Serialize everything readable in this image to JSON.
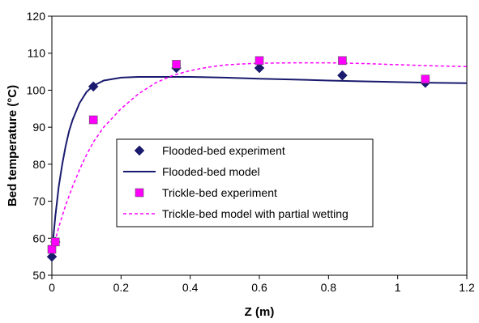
{
  "chart_data": {
    "type": "scatter",
    "xlabel": "Z (m)",
    "ylabel": "Bed temperature (°C)",
    "xlim": [
      0,
      1.2
    ],
    "ylim": [
      50,
      120
    ],
    "x_ticks": [
      0,
      0.2,
      0.4,
      0.6,
      0.8,
      1,
      1.2
    ],
    "x_tick_labels": [
      "0",
      "0.2",
      "0.4",
      "0.6",
      "0.8",
      "1",
      "1.2"
    ],
    "y_ticks": [
      50,
      60,
      70,
      80,
      90,
      100,
      110,
      120
    ],
    "y_tick_labels": [
      "50",
      "60",
      "70",
      "80",
      "90",
      "100",
      "110",
      "120"
    ],
    "grid": false,
    "legend_position": "center",
    "series": [
      {
        "name": "Flooded-bed experiment",
        "kind": "markers",
        "marker": "diamond",
        "color": "#1a1a6e",
        "points": [
          [
            0,
            55
          ],
          [
            0.01,
            59
          ],
          [
            0.12,
            101
          ],
          [
            0.36,
            106
          ],
          [
            0.6,
            106
          ],
          [
            0.84,
            104
          ],
          [
            1.08,
            102
          ]
        ]
      },
      {
        "name": "Flooded-bed model",
        "kind": "line",
        "line_style": "solid",
        "color": "#1a1a6e",
        "points": [
          [
            0,
            56
          ],
          [
            0.01,
            66
          ],
          [
            0.02,
            74
          ],
          [
            0.03,
            80
          ],
          [
            0.04,
            85
          ],
          [
            0.05,
            89
          ],
          [
            0.06,
            92
          ],
          [
            0.08,
            96.5
          ],
          [
            0.1,
            99.5
          ],
          [
            0.12,
            101.2
          ],
          [
            0.15,
            102.6
          ],
          [
            0.2,
            103.4
          ],
          [
            0.25,
            103.6
          ],
          [
            0.3,
            103.6
          ],
          [
            0.4,
            103.6
          ],
          [
            0.5,
            103.4
          ],
          [
            0.6,
            103.1
          ],
          [
            0.7,
            102.9
          ],
          [
            0.8,
            102.6
          ],
          [
            0.9,
            102.4
          ],
          [
            1.0,
            102.2
          ],
          [
            1.1,
            102.0
          ],
          [
            1.2,
            101.9
          ]
        ]
      },
      {
        "name": "Trickle-bed experiment",
        "kind": "markers",
        "marker": "square",
        "color": "#ff00ff",
        "points": [
          [
            0,
            57
          ],
          [
            0.01,
            59
          ],
          [
            0.12,
            92
          ],
          [
            0.36,
            107
          ],
          [
            0.6,
            108
          ],
          [
            0.84,
            108
          ],
          [
            1.08,
            103
          ]
        ]
      },
      {
        "name": "Trickle-bed model with partial wetting",
        "kind": "line",
        "line_style": "dashed",
        "color": "#ff00ff",
        "points": [
          [
            0,
            56
          ],
          [
            0.02,
            63
          ],
          [
            0.04,
            69
          ],
          [
            0.06,
            74
          ],
          [
            0.08,
            78.5
          ],
          [
            0.1,
            82.5
          ],
          [
            0.12,
            86
          ],
          [
            0.15,
            90
          ],
          [
            0.2,
            95
          ],
          [
            0.25,
            99
          ],
          [
            0.3,
            102
          ],
          [
            0.35,
            104
          ],
          [
            0.4,
            105.3
          ],
          [
            0.45,
            106.2
          ],
          [
            0.5,
            106.8
          ],
          [
            0.55,
            107.1
          ],
          [
            0.6,
            107.3
          ],
          [
            0.7,
            107.4
          ],
          [
            0.8,
            107.4
          ],
          [
            0.9,
            107.2
          ],
          [
            1.0,
            106.9
          ],
          [
            1.1,
            106.6
          ],
          [
            1.2,
            106.4
          ]
        ]
      }
    ]
  }
}
